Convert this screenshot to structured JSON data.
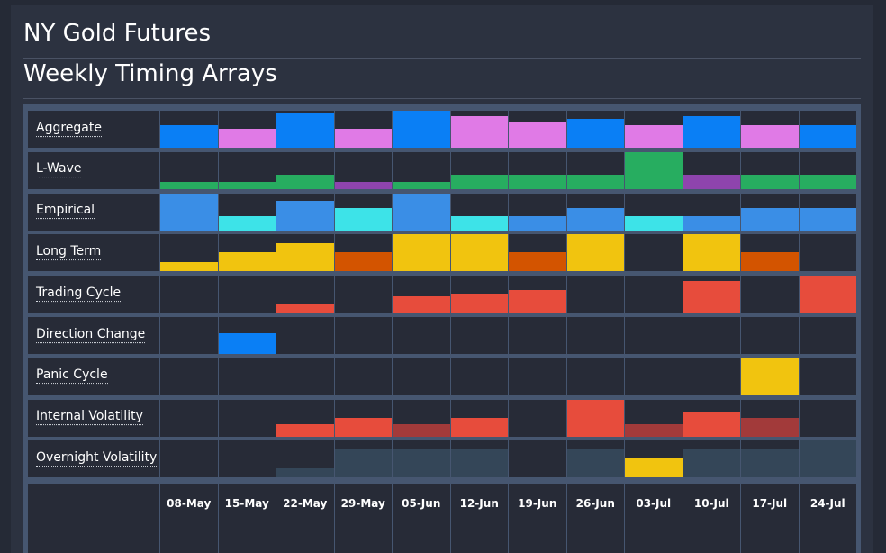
{
  "header": {
    "title": "NY Gold Futures",
    "subtitle": "Weekly Timing Arrays"
  },
  "chart_data": {
    "type": "heatmap",
    "categories": [
      "08-May",
      "15-May",
      "22-May",
      "29-May",
      "05-Jun",
      "12-Jun",
      "19-Jun",
      "26-Jun",
      "03-Jul",
      "10-Jul",
      "17-Jul",
      "24-Jul"
    ],
    "colors": {
      "blue": "#0a7ff5",
      "pink": "#e07ae6",
      "green": "#27ad60",
      "purple": "#8e44ad",
      "lightblue": "#3a8ee6",
      "cyan": "#3de3e8",
      "yellow": "#f1c40f",
      "orange": "#d35400",
      "red": "#e74c3c",
      "darkred": "#a23a3a",
      "slate": "#344658",
      "grid_bg": "#465670",
      "cell_bg": "#272b37"
    },
    "series": [
      {
        "name": "Aggregate",
        "values": [
          0.6,
          0.5,
          0.95,
          0.5,
          1.0,
          0.85,
          0.7,
          0.78,
          0.6,
          0.85,
          0.6,
          0.6
        ],
        "colors": [
          "blue",
          "pink",
          "blue",
          "pink",
          "blue",
          "pink",
          "pink",
          "blue",
          "pink",
          "blue",
          "pink",
          "blue"
        ]
      },
      {
        "name": "L-Wave",
        "values": [
          0.2,
          0.2,
          0.4,
          0.2,
          0.2,
          0.4,
          0.4,
          0.4,
          1.0,
          0.4,
          0.4,
          0.4
        ],
        "colors": [
          "green",
          "green",
          "green",
          "purple",
          "green",
          "green",
          "green",
          "green",
          "green",
          "purple",
          "green",
          "green"
        ]
      },
      {
        "name": "Empirical",
        "values": [
          1.0,
          0.4,
          0.8,
          0.6,
          1.0,
          0.4,
          0.4,
          0.6,
          0.4,
          0.4,
          0.6,
          0.6
        ],
        "colors": [
          "lightblue",
          "cyan",
          "lightblue",
          "cyan",
          "lightblue",
          "cyan",
          "lightblue",
          "lightblue",
          "cyan",
          "lightblue",
          "lightblue",
          "lightblue"
        ]
      },
      {
        "name": "Long Term",
        "values": [
          0.25,
          0.5,
          0.75,
          0.5,
          1.0,
          1.0,
          0.5,
          1.0,
          0,
          1.0,
          0.5,
          0
        ],
        "colors": [
          "yellow",
          "yellow",
          "yellow",
          "orange",
          "yellow",
          "yellow",
          "orange",
          "yellow",
          "yellow",
          "yellow",
          "orange",
          "yellow"
        ]
      },
      {
        "name": "Trading Cycle",
        "values": [
          0,
          0,
          0.25,
          0,
          0.45,
          0.5,
          0.6,
          0,
          0,
          0.85,
          0,
          1.0
        ],
        "colors": [
          "red",
          "red",
          "red",
          "red",
          "red",
          "red",
          "red",
          "red",
          "red",
          "red",
          "red",
          "red"
        ]
      },
      {
        "name": "Direction Change",
        "values": [
          0,
          0.55,
          0,
          0,
          0,
          0,
          0,
          0,
          0,
          0,
          0,
          0
        ],
        "colors": [
          "blue",
          "blue",
          "blue",
          "blue",
          "blue",
          "blue",
          "blue",
          "blue",
          "blue",
          "blue",
          "blue",
          "blue"
        ]
      },
      {
        "name": "Panic Cycle",
        "values": [
          0,
          0,
          0,
          0,
          0,
          0,
          0,
          0,
          0,
          0,
          1.0,
          0
        ],
        "colors": [
          "yellow",
          "yellow",
          "yellow",
          "yellow",
          "yellow",
          "yellow",
          "yellow",
          "yellow",
          "yellow",
          "yellow",
          "yellow",
          "yellow"
        ]
      },
      {
        "name": "Internal Volatility",
        "values": [
          0,
          0,
          0.33,
          0.5,
          0.33,
          0.5,
          0,
          1.0,
          0.33,
          0.68,
          0.5,
          0
        ],
        "colors": [
          "red",
          "red",
          "red",
          "red",
          "darkred",
          "red",
          "red",
          "red",
          "darkred",
          "red",
          "darkred",
          "red"
        ]
      },
      {
        "name": "Overnight Volatility",
        "values": [
          0,
          0,
          0.25,
          0.75,
          0.75,
          0.75,
          0,
          0.75,
          0.5,
          0.75,
          0.75,
          1.0
        ],
        "colors": [
          "slate",
          "slate",
          "slate",
          "slate",
          "slate",
          "slate",
          "slate",
          "slate",
          "yellow",
          "slate",
          "slate",
          "slate"
        ]
      }
    ]
  }
}
